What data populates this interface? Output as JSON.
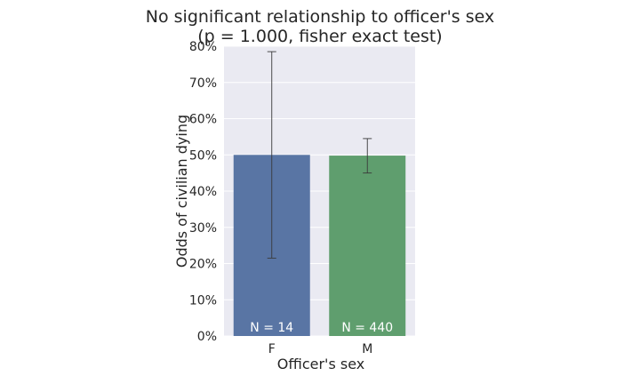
{
  "chart_data": {
    "type": "bar",
    "title": "No significant relationship to officer's sex",
    "subtitle": "(p = 1.000, fisher exact test)",
    "xlabel": "Officer's sex",
    "ylabel": "Odds of civilian dying",
    "categories": [
      "F",
      "M"
    ],
    "values": [
      50.0,
      49.8
    ],
    "error_low": [
      21.5,
      45.0
    ],
    "error_high": [
      78.5,
      54.5
    ],
    "bar_labels": [
      "N = 14",
      "N = 440"
    ],
    "colors": [
      "#5975a4",
      "#5f9e6e"
    ],
    "ylim": [
      0,
      80
    ],
    "yticks": [
      0,
      10,
      20,
      30,
      40,
      50,
      60,
      70,
      80
    ],
    "ytick_labels": [
      "0%",
      "10%",
      "20%",
      "30%",
      "40%",
      "50%",
      "60%",
      "70%",
      "80%"
    ],
    "grid": true,
    "background": "#eaeaf2"
  }
}
